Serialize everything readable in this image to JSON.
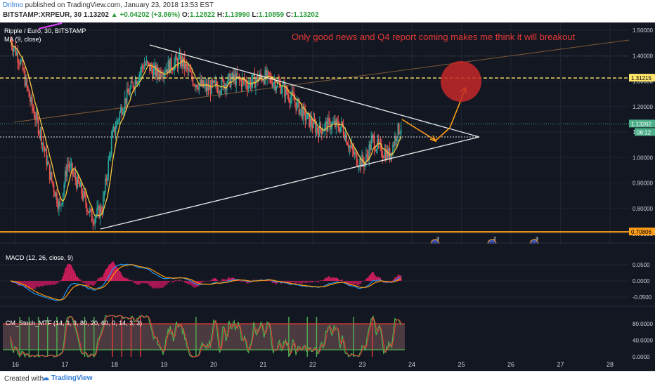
{
  "header": {
    "author": "Drilmo",
    "published_text": "published on TradingView.com, January 23, 2018 13:53 EST",
    "symbol": "BITSTAMP:XRPEUR, 30",
    "last": "1.13202",
    "change": "▲ +0.04202 (+3.86%)",
    "o_label": "O:",
    "o_val": "1.12822",
    "h_label": "H:",
    "h_val": "1.13990",
    "l_label": "L:",
    "l_val": "1.10859",
    "c_label": "C:",
    "c_val": "1.13202"
  },
  "chart": {
    "pane_title": "Ripple / Euro, 30, BITSTAMP",
    "indicator_label": "MA (9, close)",
    "annotation": "Only good news and Q4 report coming makes me think it will breakout",
    "price_badge": "1.13202",
    "countdown_badge": "06:12",
    "level_high_badge": "1.31215",
    "level_low_badge": "0.70806",
    "event_markers": [
      "3",
      "2",
      "3"
    ],
    "macd_title": "MACD (12, 26, close, 9)",
    "stoch_title": "CM_Stoch_MTF (14, 3, 3, 80, 20, 60, 0, 14, 3, 3)"
  },
  "chart_data": {
    "type": "candlestick",
    "price_axis_ticks": [
      1.5,
      1.4,
      1.3,
      1.2,
      1.1,
      1.0,
      0.9,
      0.8,
      0.7
    ],
    "price_axis_labels": [
      "1.50000",
      "1.40000",
      "1.30000",
      "1.20000",
      "1.10000",
      "1.00000",
      "0.90000",
      "0.80000",
      "0.70000"
    ],
    "date_ticks": [
      "16",
      "17",
      "18",
      "19",
      "20",
      "21",
      "22",
      "23",
      "24",
      "25",
      "26",
      "27",
      "28"
    ],
    "macd_ticks": [
      0.05,
      0.0,
      -0.05
    ],
    "macd_labels": [
      "0.0500",
      "0.0000",
      "-0.0500"
    ],
    "stoch_ticks": [
      80,
      40,
      0
    ],
    "stoch_labels": [
      "80.0000",
      "40.0000",
      "0.0000"
    ],
    "price_anchors": [
      [
        15.9,
        1.46
      ],
      [
        16.1,
        1.38
      ],
      [
        16.3,
        1.22
      ],
      [
        16.5,
        1.1
      ],
      [
        16.7,
        0.93
      ],
      [
        16.9,
        0.8
      ],
      [
        17.05,
        0.98
      ],
      [
        17.3,
        0.88
      ],
      [
        17.55,
        0.76
      ],
      [
        17.75,
        0.8
      ],
      [
        17.95,
        1.08
      ],
      [
        18.15,
        1.2
      ],
      [
        18.35,
        1.28
      ],
      [
        18.6,
        1.37
      ],
      [
        18.85,
        1.33
      ],
      [
        19.1,
        1.36
      ],
      [
        19.35,
        1.38
      ],
      [
        19.6,
        1.3
      ],
      [
        19.85,
        1.27
      ],
      [
        20.1,
        1.28
      ],
      [
        20.4,
        1.31
      ],
      [
        20.7,
        1.29
      ],
      [
        21.0,
        1.32
      ],
      [
        21.3,
        1.29
      ],
      [
        21.6,
        1.23
      ],
      [
        21.85,
        1.16
      ],
      [
        22.1,
        1.11
      ],
      [
        22.35,
        1.13
      ],
      [
        22.6,
        1.12
      ],
      [
        22.75,
        1.04
      ],
      [
        22.9,
        0.99
      ],
      [
        23.05,
        0.98
      ],
      [
        23.2,
        1.07
      ],
      [
        23.35,
        1.03
      ],
      [
        23.55,
        1.01
      ],
      [
        23.7,
        1.1
      ],
      [
        23.8,
        1.13
      ]
    ],
    "ma_period": 9,
    "levels": [
      1.31215,
      0.70806
    ],
    "current_price": 1.13202
  }
}
